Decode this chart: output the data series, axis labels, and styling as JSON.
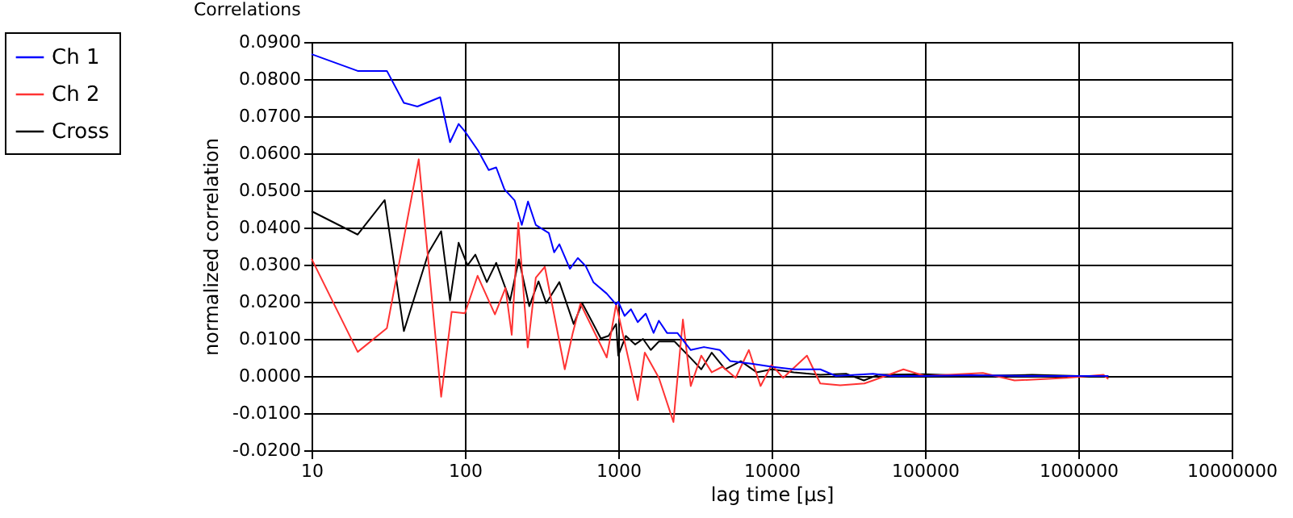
{
  "chart_data": {
    "type": "line",
    "title": "Correlations",
    "xlabel": "lag time [µs]",
    "ylabel": "normalized correlation",
    "log": "x",
    "grid": true,
    "legend": "top left",
    "xlim": [
      10,
      10000000
    ],
    "xticks": [
      10,
      100,
      1000,
      10000,
      100000,
      1000000,
      10000000
    ],
    "ylim": [
      -0.02,
      0.09
    ],
    "yticks": [
      {
        "value": -0.02,
        "label": "-0.0200"
      },
      {
        "value": -0.01,
        "label": "-0.0100"
      },
      {
        "value": 0,
        "label": "0.0000"
      },
      {
        "value": 0.01,
        "label": "0.0100"
      },
      {
        "value": 0.02,
        "label": "0.0200"
      },
      {
        "value": 0.03,
        "label": "0.0300"
      },
      {
        "value": 0.04,
        "label": "0.0400"
      },
      {
        "value": 0.05,
        "label": "0.0500"
      },
      {
        "value": 0.06,
        "label": "0.0600"
      },
      {
        "value": 0.07,
        "label": "0.0700"
      },
      {
        "value": 0.08,
        "label": "0.0800"
      },
      {
        "value": 0.09,
        "label": "0.0900"
      }
    ],
    "series": [
      {
        "name": "Ch 1",
        "color": "#0000ff",
        "x": [
          10,
          20,
          31,
          40,
          49,
          69,
          80,
          91,
          100,
          122,
          143,
          160,
          181,
          211,
          235,
          258,
          290,
          353,
          382,
          413,
          484,
          545,
          614,
          690,
          841,
          969,
          1000,
          1100,
          1210,
          1340,
          1510,
          1700,
          1840,
          2080,
          2430,
          2970,
          3620,
          4590,
          5380,
          7390,
          10000,
          13960,
          20760,
          26300,
          45900,
          60000,
          100000,
          200000,
          500000,
          1000000,
          1570000
        ],
        "values": [
          0.0867,
          0.0822,
          0.0822,
          0.0736,
          0.0726,
          0.0751,
          0.063,
          0.0679,
          0.0659,
          0.0607,
          0.0555,
          0.0562,
          0.0503,
          0.0473,
          0.0407,
          0.047,
          0.0407,
          0.0385,
          0.0333,
          0.0355,
          0.0289,
          0.0318,
          0.0296,
          0.0252,
          0.0222,
          0.0193,
          0.02,
          0.0162,
          0.018,
          0.0145,
          0.0168,
          0.0116,
          0.0149,
          0.0116,
          0.0116,
          0.007,
          0.0078,
          0.007,
          0.004,
          0.0033,
          0.0025,
          0.0018,
          0.0018,
          0,
          0.0006,
          0,
          0,
          0.0002,
          0,
          0,
          0
        ]
      },
      {
        "name": "Ch 2",
        "color": "#ff3333",
        "x": [
          10,
          20,
          31,
          50,
          70,
          82,
          100,
          121,
          157,
          184,
          202,
          223,
          257,
          290,
          332,
          448,
          504,
          567,
          841,
          969,
          1340,
          1490,
          1840,
          2290,
          2640,
          2970,
          3480,
          4070,
          4780,
          5830,
          7110,
          8470,
          10000,
          11900,
          17000,
          20760,
          28000,
          40300,
          45900,
          72400,
          100000,
          238700,
          384000,
          848000,
          1460000,
          1570000
        ],
        "values": [
          0.0316,
          0.0065,
          0.0129,
          0.0584,
          -0.0056,
          0.0173,
          0.0169,
          0.027,
          0.0166,
          0.0237,
          0.0111,
          0.0413,
          0.0077,
          0.0265,
          0.0294,
          0.0018,
          0.0114,
          0.0195,
          0.005,
          0.0193,
          -0.0065,
          0.0063,
          -0.0005,
          -0.0124,
          0.0152,
          -0.0027,
          0.0055,
          0.001,
          0.0025,
          -0.0005,
          0.007,
          -0.0027,
          0.003,
          -0.0005,
          0.0055,
          -0.002,
          -0.0025,
          -0.002,
          -0.0012,
          0.0018,
          0,
          0.0008,
          -0.0012,
          -0.0005,
          0.0003,
          -0.0008
        ]
      },
      {
        "name": "Cross",
        "color": "#000000",
        "x": [
          10,
          20,
          30,
          40,
          58,
          70,
          80,
          91,
          104,
          117,
          139,
          160,
          197,
          225,
          263,
          302,
          339,
          413,
          512,
          582,
          660,
          770,
          865,
          969,
          1000,
          1120,
          1290,
          1450,
          1630,
          1840,
          2330,
          2970,
          3480,
          4070,
          4980,
          6300,
          7990,
          10000,
          13960,
          20760,
          30600,
          40000,
          49400,
          100000,
          200000,
          500000,
          1000000,
          1570000
        ],
        "values": [
          0.0444,
          0.0381,
          0.0474,
          0.0121,
          0.0333,
          0.039,
          0.0203,
          0.0359,
          0.0298,
          0.0327,
          0.0253,
          0.0305,
          0.0203,
          0.0314,
          0.0188,
          0.0255,
          0.0196,
          0.0253,
          0.014,
          0.0196,
          0.0154,
          0.0101,
          0.0108,
          0.014,
          0.0055,
          0.0108,
          0.0085,
          0.01,
          0.007,
          0.0093,
          0.0093,
          0.0048,
          0.0018,
          0.0063,
          0.0018,
          0.004,
          0.001,
          0.0018,
          0.001,
          0.0003,
          0.0006,
          -0.0012,
          0.0003,
          0.0005,
          0,
          0.0003,
          0,
          0
        ]
      }
    ]
  }
}
